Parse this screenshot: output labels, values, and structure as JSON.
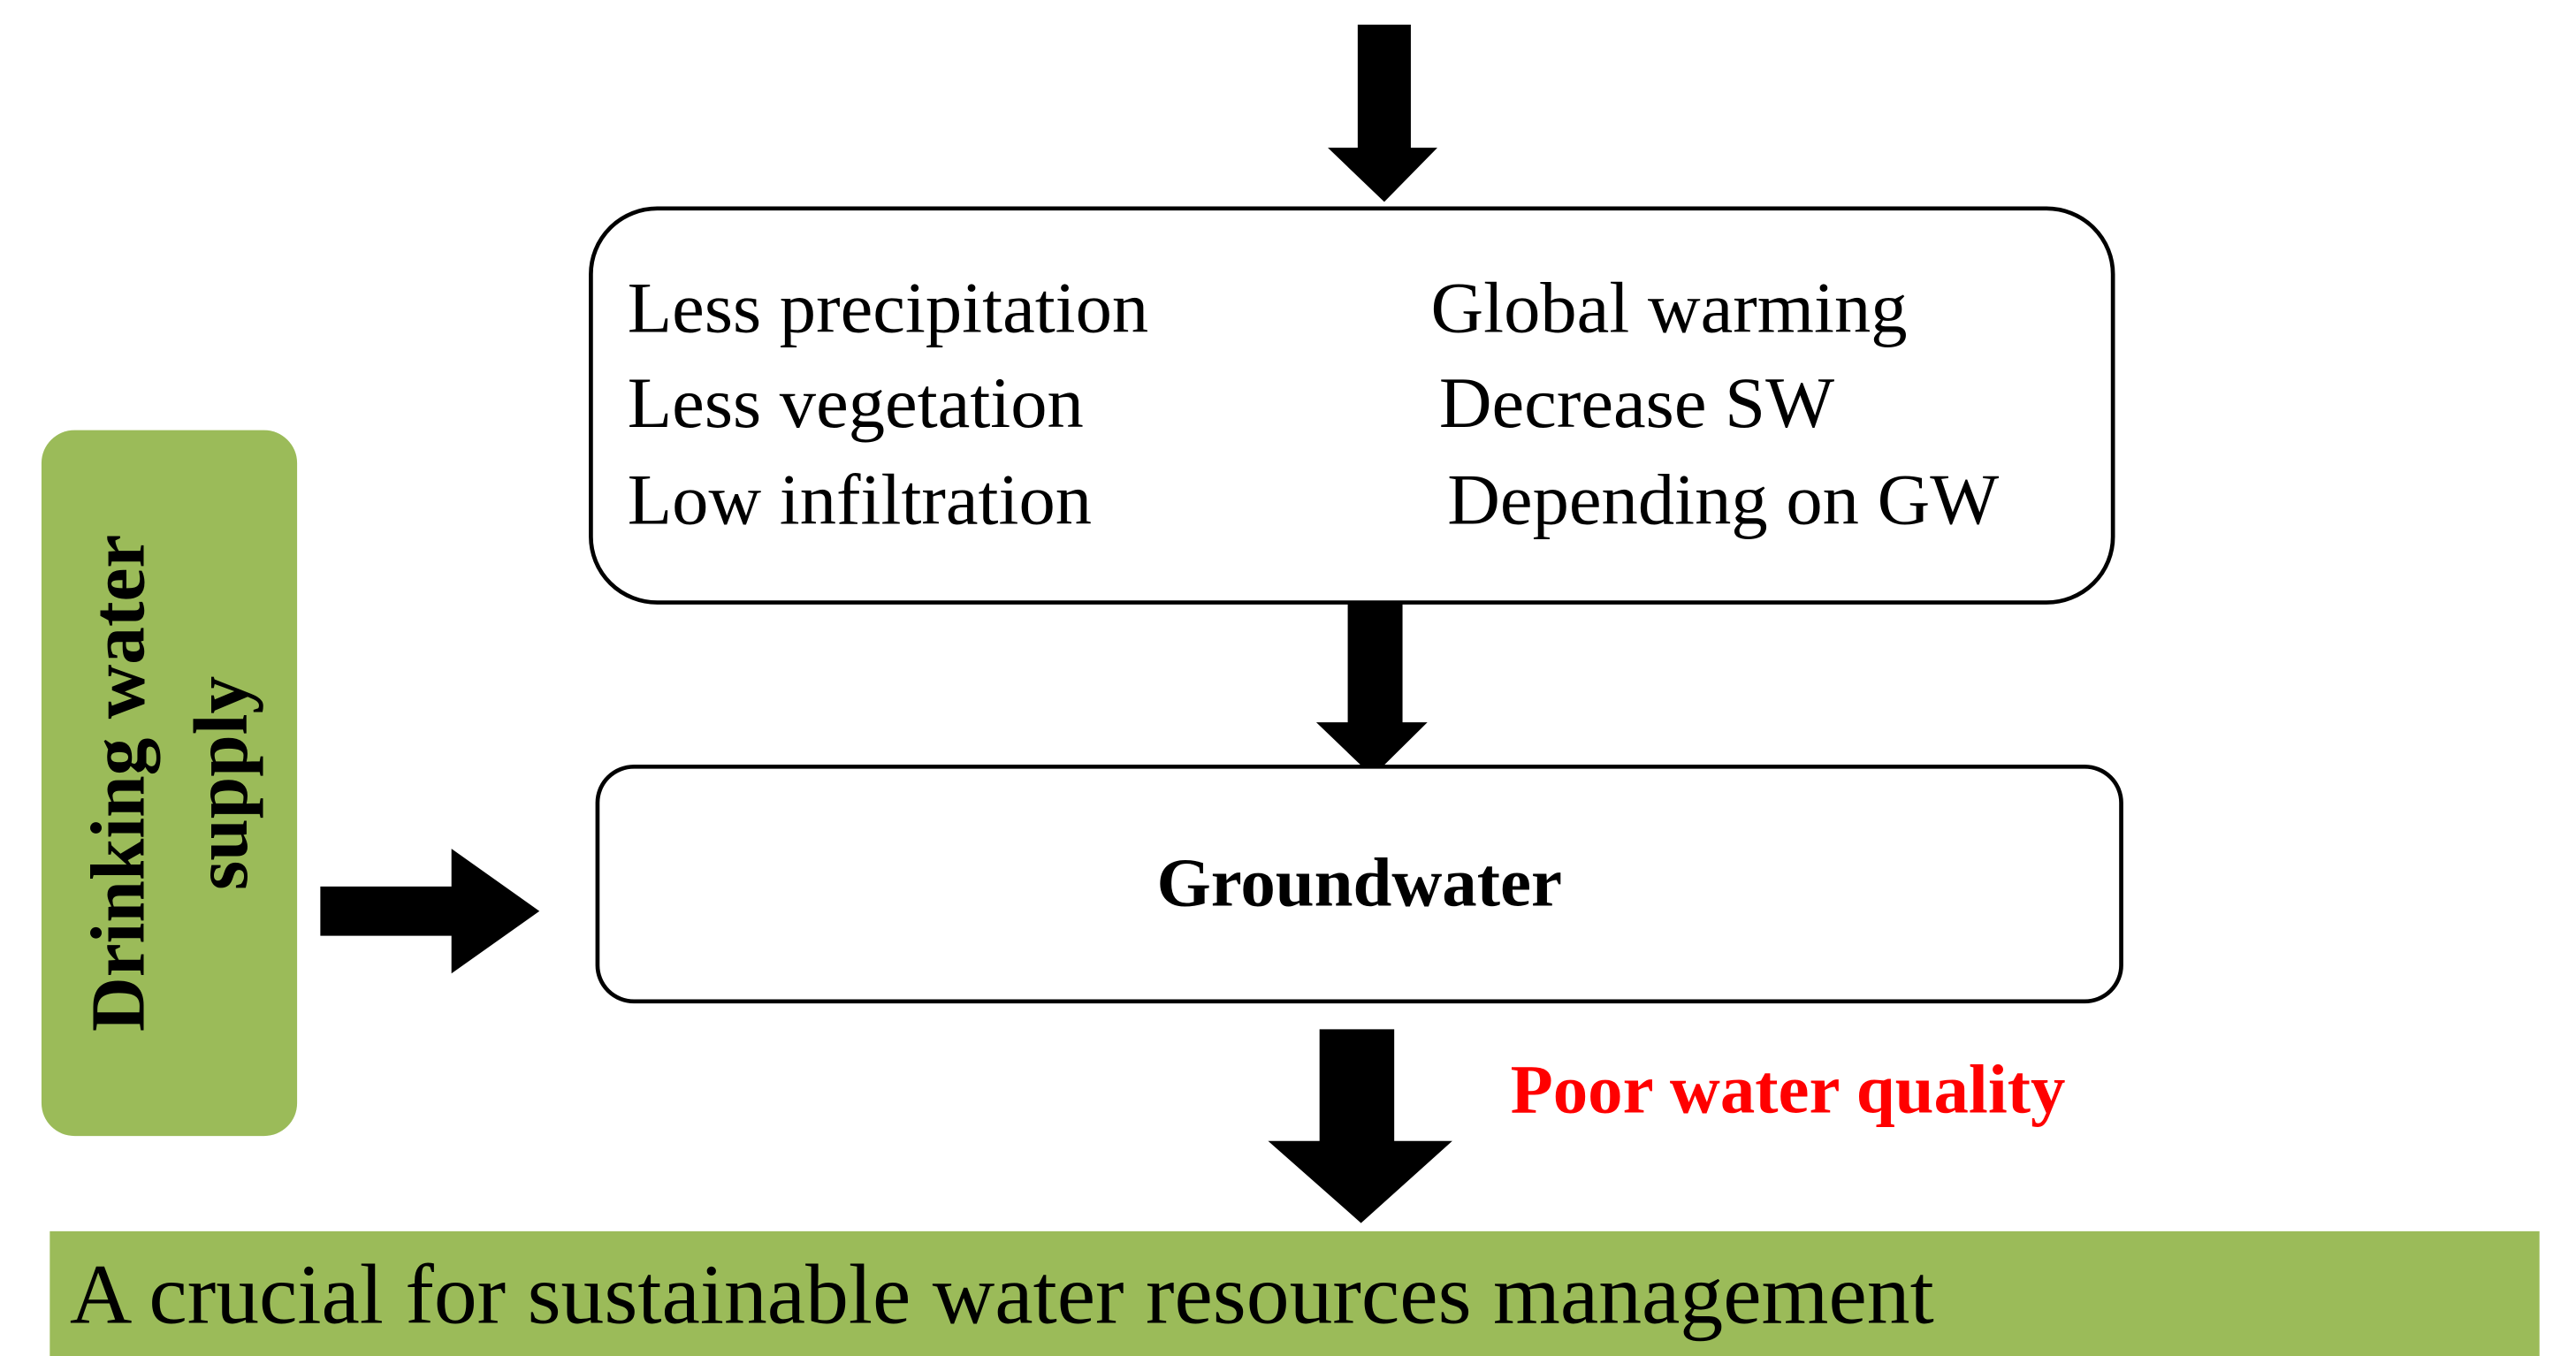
{
  "cause_box": {
    "left_items": [
      "Less precipitation",
      "Less vegetation",
      "Low infiltration"
    ],
    "right_items": [
      "Global warming",
      "Decrease SW",
      "Depending on GW"
    ]
  },
  "groundwater_box": {
    "label": "Groundwater"
  },
  "side_box": {
    "lines": [
      "Drinking water",
      "supply"
    ]
  },
  "annotation": "Poor water quality",
  "conclusion": "A crucial for sustainable water resources management"
}
